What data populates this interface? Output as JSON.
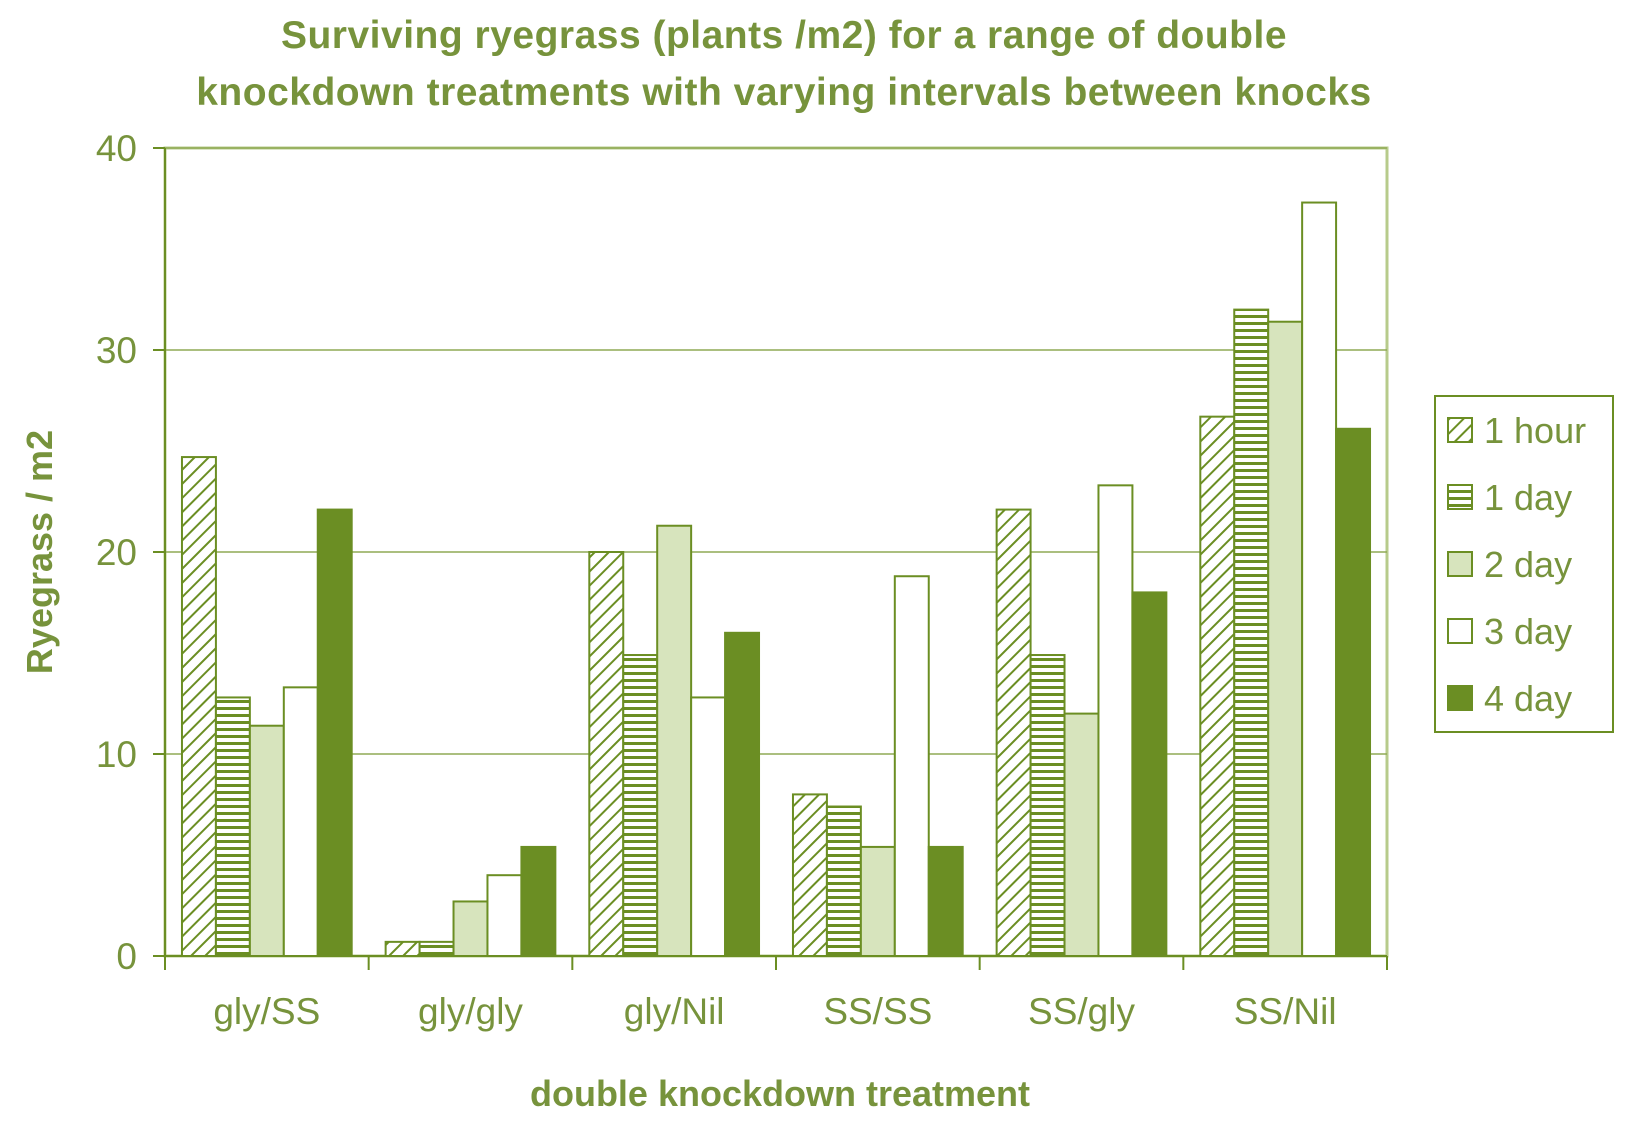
{
  "colors": {
    "accent": "#6b8e23",
    "text": "#77933c",
    "light_fill": "#d7e4bd",
    "grid": "#8faa55",
    "background": "#ffffff"
  },
  "chart_data": {
    "type": "bar",
    "title_lines": [
      "Surviving ryegrass (plants /m2) for a range of double",
      "knockdown treatments with varying intervals between knocks"
    ],
    "xlabel": "double knockdown treatment",
    "ylabel": "Ryegrass / m2",
    "ylim": [
      0,
      40
    ],
    "yticks": [
      0,
      10,
      20,
      30,
      40
    ],
    "grid": true,
    "legend_position": "right",
    "categories": [
      "gly/SS",
      "gly/gly",
      "gly/Nil",
      "SS/SS",
      "SS/gly",
      "SS/Nil"
    ],
    "series": [
      {
        "name": "1 hour",
        "pattern": "diagonal-hatch",
        "values": [
          24.7,
          0.7,
          20.0,
          8.0,
          22.1,
          26.7
        ]
      },
      {
        "name": "1 day",
        "pattern": "horizontal-stripes",
        "values": [
          12.8,
          0.7,
          14.9,
          7.4,
          14.9,
          32.0
        ]
      },
      {
        "name": "2 day",
        "pattern": "light-solid",
        "values": [
          11.4,
          2.7,
          21.3,
          5.4,
          12.0,
          31.4
        ]
      },
      {
        "name": "3 day",
        "pattern": "white",
        "values": [
          13.3,
          4.0,
          12.8,
          18.8,
          23.3,
          37.3
        ]
      },
      {
        "name": "4 day",
        "pattern": "dark-solid",
        "values": [
          22.1,
          5.4,
          16.0,
          5.4,
          18.0,
          26.1
        ]
      }
    ]
  }
}
